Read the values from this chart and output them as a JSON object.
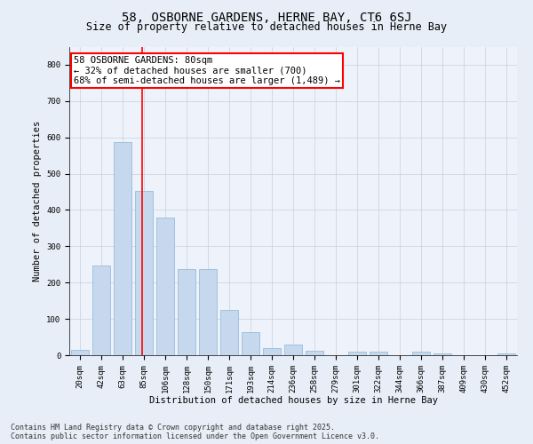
{
  "title": "58, OSBORNE GARDENS, HERNE BAY, CT6 6SJ",
  "subtitle": "Size of property relative to detached houses in Herne Bay",
  "xlabel": "Distribution of detached houses by size in Herne Bay",
  "ylabel": "Number of detached properties",
  "bar_labels": [
    "20sqm",
    "42sqm",
    "63sqm",
    "85sqm",
    "106sqm",
    "128sqm",
    "150sqm",
    "171sqm",
    "193sqm",
    "214sqm",
    "236sqm",
    "258sqm",
    "279sqm",
    "301sqm",
    "322sqm",
    "344sqm",
    "366sqm",
    "387sqm",
    "409sqm",
    "430sqm",
    "452sqm"
  ],
  "bar_values": [
    15,
    248,
    588,
    453,
    378,
    238,
    238,
    125,
    63,
    20,
    30,
    13,
    0,
    10,
    10,
    0,
    10,
    5,
    0,
    0,
    5
  ],
  "bar_color": "#c5d8ed",
  "bar_edgecolor": "#8cb4d5",
  "vline_color": "red",
  "annotation_text": "58 OSBORNE GARDENS: 80sqm\n← 32% of detached houses are smaller (700)\n68% of semi-detached houses are larger (1,489) →",
  "annotation_box_edgecolor": "red",
  "ylim": [
    0,
    850
  ],
  "yticks": [
    0,
    100,
    200,
    300,
    400,
    500,
    600,
    700,
    800
  ],
  "footer_text": "Contains HM Land Registry data © Crown copyright and database right 2025.\nContains public sector information licensed under the Open Government Licence v3.0.",
  "bg_color": "#e8eef7",
  "plot_bg_color": "#eef3fb",
  "grid_color": "#c8d0dc",
  "title_fontsize": 10,
  "subtitle_fontsize": 8.5,
  "label_fontsize": 7.5,
  "tick_fontsize": 6.5,
  "footer_fontsize": 6,
  "annotation_fontsize": 7.5
}
